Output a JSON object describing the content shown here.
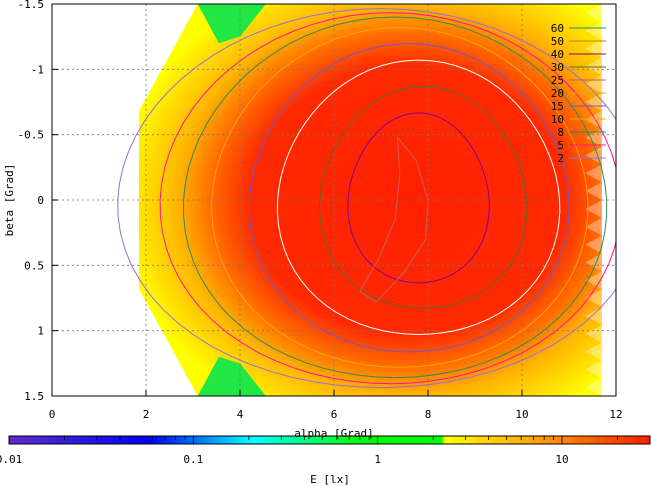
{
  "chart_data": {
    "type": "heatmap",
    "xlabel": "alpha [Grad]",
    "ylabel": "beta [Grad]",
    "xlim": [
      0,
      12
    ],
    "ylim": [
      1.5,
      -1.5
    ],
    "x_ticks": [
      "0",
      "2",
      "4",
      "6",
      "8",
      "10",
      "12"
    ],
    "y_ticks": [
      "-1.5",
      "-1",
      "-0.5",
      "0",
      "0.5",
      "1",
      "1.5"
    ],
    "grid": true,
    "legend_placement": "top-right",
    "contour_levels": [
      {
        "label": "60",
        "color": "#2e8b57"
      },
      {
        "label": "50",
        "color": "#b8860b"
      },
      {
        "label": "40",
        "color": "#8b008b"
      },
      {
        "label": "30",
        "color": "#556b2f"
      },
      {
        "label": "25",
        "color": "#cd5c5c"
      },
      {
        "label": "20",
        "color": "#daa520"
      },
      {
        "label": "15",
        "color": "#6a5acd"
      },
      {
        "label": "10",
        "color": "#ffa500"
      },
      {
        "label": "8",
        "color": "#2e8b57"
      },
      {
        "label": "5",
        "color": "#ff1493"
      },
      {
        "label": "2",
        "color": "#9370db"
      }
    ],
    "colorbar": {
      "label": "E [lx]",
      "scale": "log",
      "range": [
        0.01,
        30
      ],
      "tick_labels": [
        "0.01",
        "0.1",
        "1",
        "10"
      ],
      "colors": [
        "#5a2fc8",
        "#0000ff",
        "#00ffff",
        "#00ff00",
        "#ffff00",
        "#ff2000"
      ]
    }
  }
}
